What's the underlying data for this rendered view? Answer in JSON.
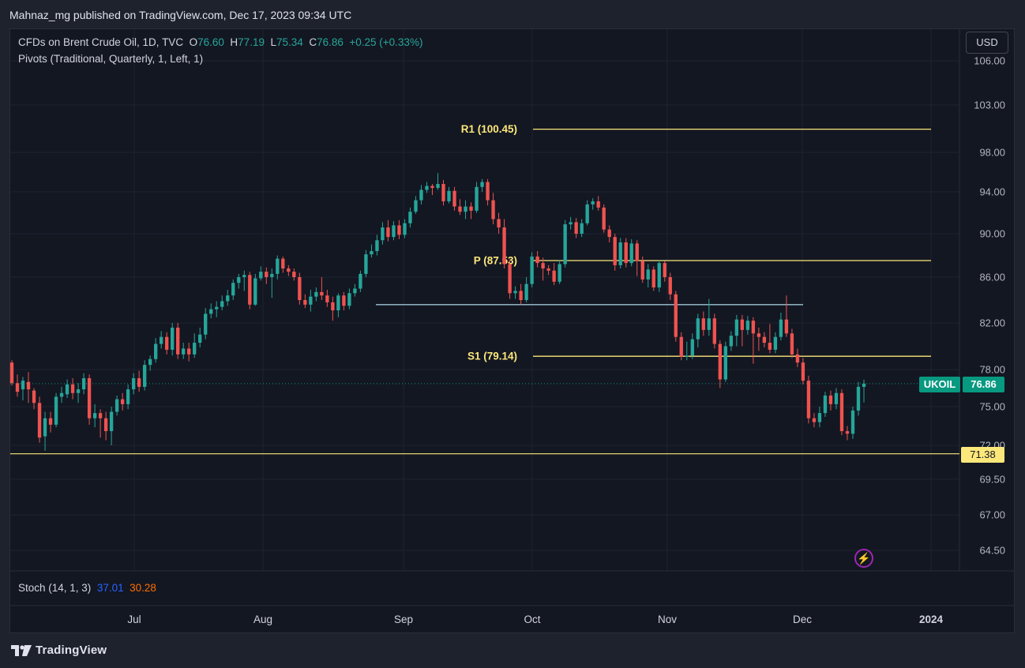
{
  "published_line": "Mahnaz_mg published on TradingView.com, Dec 17, 2023 09:34 UTC",
  "legend": {
    "symbol": "CFDs on Brent Crude Oil, 1D, TVC",
    "open_label": "O",
    "open": "76.60",
    "high_label": "H",
    "high": "77.19",
    "low_label": "L",
    "low": "75.34",
    "close_label": "C",
    "close": "76.86",
    "change": "+0.25 (+0.33%)",
    "indicator": "Pivots (Traditional, Quarterly, 1, Left, 1)"
  },
  "currency_button": "USD",
  "stoch": {
    "label": "Stoch (14, 1, 3)",
    "k": "37.01",
    "d": "30.28"
  },
  "footer_brand": "TradingView",
  "price_tags": {
    "symbol": "UKOIL",
    "last": "76.86",
    "support": "71.38"
  },
  "colors": {
    "up": "#26a69a",
    "down": "#ef5350",
    "pivot": "#fbe77a",
    "trendline": "#9ec5d6",
    "support": "#fbe77a"
  },
  "chart_data": {
    "type": "candlestick",
    "title": "CFDs on Brent Crude Oil, 1D, TVC",
    "y_tick_labels": [
      "106.00",
      "103.00",
      "98.00",
      "94.00",
      "90.00",
      "86.00",
      "82.00",
      "78.00",
      "75.00",
      "72.00",
      "69.50",
      "67.00",
      "64.50"
    ],
    "x_tick_labels": [
      "Jul",
      "Aug",
      "Sep",
      "Oct",
      "Nov",
      "Dec",
      "2024"
    ],
    "pivot_lines": [
      {
        "label": "R1 (100.45)",
        "value": 100.45
      },
      {
        "label": "P (87.53)",
        "value": 87.53
      },
      {
        "label": "S1 (79.14)",
        "value": 79.14
      }
    ],
    "trendline_value": 83.6,
    "support_value": 71.38,
    "last_price": 76.86,
    "candles": [
      [
        78.6,
        76.9,
        78.8,
        76.7
      ],
      [
        76.9,
        76.2,
        77.6,
        75.8
      ],
      [
        76.4,
        77.1,
        77.4,
        75.5
      ],
      [
        77.0,
        76.4,
        77.8,
        75.3
      ],
      [
        76.3,
        75.3,
        76.5,
        74.8
      ],
      [
        75.3,
        72.6,
        75.8,
        72.2
      ],
      [
        72.7,
        74.1,
        74.6,
        71.6
      ],
      [
        74.1,
        73.6,
        74.6,
        73.0
      ],
      [
        73.6,
        75.8,
        76.1,
        73.4
      ],
      [
        75.8,
        76.1,
        76.6,
        75.3
      ],
      [
        76.0,
        76.8,
        77.2,
        75.7
      ],
      [
        76.8,
        76.1,
        77.3,
        75.6
      ],
      [
        76.1,
        76.4,
        76.9,
        75.3
      ],
      [
        76.4,
        77.3,
        77.7,
        76.0
      ],
      [
        77.3,
        74.1,
        77.6,
        73.6
      ],
      [
        74.1,
        74.5,
        75.2,
        73.4
      ],
      [
        74.5,
        74.1,
        74.8,
        72.6
      ],
      [
        74.1,
        73.1,
        74.6,
        72.4
      ],
      [
        73.1,
        74.6,
        75.0,
        72.0
      ],
      [
        74.6,
        75.6,
        75.9,
        74.3
      ],
      [
        75.6,
        75.2,
        76.1,
        74.7
      ],
      [
        75.2,
        76.4,
        76.8,
        74.8
      ],
      [
        76.4,
        77.3,
        77.7,
        76.0
      ],
      [
        77.3,
        76.6,
        77.9,
        76.2
      ],
      [
        76.6,
        78.4,
        78.8,
        76.3
      ],
      [
        78.4,
        78.9,
        79.2,
        77.9
      ],
      [
        78.9,
        80.2,
        80.7,
        78.6
      ],
      [
        80.2,
        80.8,
        81.3,
        79.8
      ],
      [
        80.8,
        79.7,
        81.2,
        79.3
      ],
      [
        79.7,
        81.6,
        82.0,
        79.2
      ],
      [
        81.6,
        79.3,
        82.0,
        78.9
      ],
      [
        79.3,
        79.8,
        80.3,
        78.9
      ],
      [
        79.8,
        79.3,
        80.3,
        78.7
      ],
      [
        79.3,
        80.3,
        81.1,
        79.0
      ],
      [
        80.3,
        81.0,
        81.6,
        79.9
      ],
      [
        81.0,
        82.8,
        83.3,
        80.6
      ],
      [
        82.8,
        83.2,
        83.7,
        82.4
      ],
      [
        83.2,
        83.4,
        83.9,
        82.5
      ],
      [
        83.4,
        83.9,
        84.4,
        83.1
      ],
      [
        83.9,
        84.4,
        84.9,
        83.5
      ],
      [
        84.4,
        85.5,
        85.8,
        84.0
      ],
      [
        85.5,
        86.0,
        86.3,
        85.0
      ],
      [
        86.0,
        86.2,
        86.6,
        84.8
      ],
      [
        86.2,
        83.6,
        86.5,
        83.2
      ],
      [
        83.6,
        85.9,
        86.3,
        83.5
      ],
      [
        85.9,
        86.5,
        87.0,
        85.7
      ],
      [
        86.5,
        86.0,
        86.9,
        85.4
      ],
      [
        86.0,
        86.3,
        86.8,
        84.2
      ],
      [
        86.3,
        87.7,
        88.0,
        85.8
      ],
      [
        87.7,
        86.8,
        87.9,
        86.4
      ],
      [
        86.8,
        86.5,
        87.1,
        86.1
      ],
      [
        86.5,
        86.0,
        86.8,
        85.7
      ],
      [
        86.0,
        84.0,
        86.4,
        83.6
      ],
      [
        84.0,
        83.6,
        84.5,
        83.3
      ],
      [
        83.6,
        84.3,
        84.9,
        83.0
      ],
      [
        84.3,
        84.7,
        85.1,
        83.9
      ],
      [
        84.7,
        84.4,
        86.0,
        84.0
      ],
      [
        84.4,
        83.8,
        84.9,
        83.4
      ],
      [
        83.8,
        83.1,
        84.3,
        82.2
      ],
      [
        83.1,
        84.4,
        84.6,
        82.5
      ],
      [
        84.4,
        83.5,
        84.7,
        83.1
      ],
      [
        83.5,
        84.6,
        85.0,
        83.2
      ],
      [
        84.6,
        85.0,
        85.4,
        84.3
      ],
      [
        85.0,
        86.3,
        86.6,
        84.7
      ],
      [
        86.3,
        88.1,
        88.5,
        86.0
      ],
      [
        88.1,
        88.4,
        89.0,
        87.8
      ],
      [
        88.4,
        89.4,
        89.9,
        88.0
      ],
      [
        89.4,
        90.6,
        91.1,
        89.0
      ],
      [
        90.6,
        89.7,
        91.3,
        89.3
      ],
      [
        89.7,
        90.8,
        91.2,
        89.4
      ],
      [
        90.8,
        89.9,
        91.3,
        89.5
      ],
      [
        89.9,
        91.0,
        91.4,
        89.6
      ],
      [
        91.0,
        92.1,
        92.5,
        90.6
      ],
      [
        92.1,
        93.2,
        93.6,
        91.9
      ],
      [
        93.2,
        94.2,
        94.7,
        92.8
      ],
      [
        94.2,
        94.6,
        95.0,
        93.9
      ],
      [
        94.6,
        94.4,
        94.8,
        93.7
      ],
      [
        94.4,
        94.8,
        95.9,
        94.2
      ],
      [
        94.8,
        93.1,
        95.2,
        92.7
      ],
      [
        93.1,
        94.1,
        94.5,
        92.9
      ],
      [
        94.1,
        92.6,
        94.5,
        92.2
      ],
      [
        92.6,
        92.1,
        93.3,
        91.8
      ],
      [
        92.1,
        92.6,
        93.2,
        91.4
      ],
      [
        92.6,
        92.2,
        93.0,
        91.4
      ],
      [
        92.2,
        94.5,
        95.0,
        92.0
      ],
      [
        94.5,
        95.0,
        95.3,
        94.0
      ],
      [
        95.0,
        93.2,
        95.3,
        92.7
      ],
      [
        93.2,
        91.4,
        93.9,
        90.9
      ],
      [
        91.4,
        90.6,
        92.0,
        90.0
      ],
      [
        90.6,
        87.2,
        91.4,
        86.8
      ],
      [
        87.2,
        84.6,
        87.6,
        84.1
      ],
      [
        84.6,
        84.8,
        85.2,
        84.1
      ],
      [
        84.8,
        84.0,
        85.4,
        83.6
      ],
      [
        84.0,
        85.4,
        86.0,
        83.8
      ],
      [
        85.4,
        87.9,
        88.3,
        85.1
      ],
      [
        87.9,
        87.3,
        88.4,
        86.9
      ],
      [
        87.3,
        86.8,
        87.8,
        85.7
      ],
      [
        86.8,
        86.6,
        87.1,
        86.2
      ],
      [
        86.6,
        85.6,
        87.3,
        85.3
      ],
      [
        85.6,
        87.2,
        87.6,
        85.4
      ],
      [
        87.2,
        90.9,
        91.3,
        86.9
      ],
      [
        90.9,
        91.1,
        91.6,
        90.4
      ],
      [
        91.1,
        90.0,
        91.5,
        89.6
      ],
      [
        90.0,
        91.0,
        91.4,
        89.7
      ],
      [
        91.0,
        92.8,
        93.2,
        90.8
      ],
      [
        92.8,
        93.1,
        93.4,
        92.3
      ],
      [
        93.1,
        92.5,
        93.6,
        92.2
      ],
      [
        92.5,
        90.4,
        92.8,
        90.1
      ],
      [
        90.4,
        89.7,
        90.8,
        89.2
      ],
      [
        89.7,
        87.1,
        90.0,
        86.6
      ],
      [
        87.1,
        89.2,
        89.6,
        86.8
      ],
      [
        89.2,
        87.3,
        89.6,
        86.9
      ],
      [
        87.3,
        89.1,
        89.5,
        87.0
      ],
      [
        89.1,
        87.5,
        89.4,
        86.1
      ],
      [
        87.5,
        85.8,
        87.9,
        85.5
      ],
      [
        85.8,
        86.7,
        87.2,
        85.1
      ],
      [
        86.7,
        85.1,
        87.0,
        84.8
      ],
      [
        85.1,
        87.3,
        87.6,
        84.7
      ],
      [
        87.3,
        86.0,
        87.5,
        85.6
      ],
      [
        86.0,
        84.5,
        86.4,
        84.0
      ],
      [
        84.5,
        80.8,
        84.8,
        80.4
      ],
      [
        80.8,
        79.1,
        81.2,
        78.8
      ],
      [
        79.1,
        79.2,
        80.4,
        78.8
      ],
      [
        79.2,
        80.6,
        81.1,
        78.9
      ],
      [
        80.6,
        82.4,
        82.8,
        79.9
      ],
      [
        82.4,
        81.4,
        83.0,
        80.9
      ],
      [
        81.4,
        82.4,
        84.1,
        80.9
      ],
      [
        82.4,
        80.2,
        82.8,
        79.8
      ],
      [
        80.2,
        77.2,
        80.5,
        76.5
      ],
      [
        77.2,
        80.0,
        80.4,
        77.0
      ],
      [
        80.0,
        80.9,
        81.3,
        79.6
      ],
      [
        80.9,
        82.3,
        82.7,
        80.0
      ],
      [
        82.3,
        81.4,
        82.7,
        80.0
      ],
      [
        81.4,
        82.2,
        82.6,
        81.0
      ],
      [
        82.2,
        81.1,
        82.5,
        78.5
      ],
      [
        81.1,
        80.8,
        81.6,
        79.6
      ],
      [
        80.8,
        80.3,
        81.2,
        79.9
      ],
      [
        80.3,
        79.7,
        81.9,
        79.4
      ],
      [
        79.7,
        80.8,
        81.2,
        79.4
      ],
      [
        80.8,
        82.3,
        82.9,
        80.5
      ],
      [
        82.3,
        81.1,
        84.4,
        80.8
      ],
      [
        81.1,
        79.3,
        81.5,
        79.0
      ],
      [
        79.3,
        78.6,
        79.8,
        78.2
      ],
      [
        78.6,
        77.1,
        79.0,
        76.8
      ],
      [
        77.1,
        74.1,
        77.5,
        73.7
      ],
      [
        74.1,
        73.8,
        74.5,
        73.4
      ],
      [
        73.8,
        74.5,
        75.0,
        73.4
      ],
      [
        74.5,
        75.9,
        76.2,
        74.2
      ],
      [
        75.9,
        75.2,
        76.3,
        74.7
      ],
      [
        75.2,
        76.1,
        76.5,
        74.8
      ],
      [
        76.1,
        73.1,
        76.4,
        72.8
      ],
      [
        73.1,
        72.9,
        73.5,
        72.4
      ],
      [
        72.9,
        74.7,
        75.0,
        72.5
      ],
      [
        74.7,
        76.6,
        77.0,
        74.3
      ],
      [
        76.6,
        76.86,
        77.19,
        75.34
      ]
    ]
  }
}
